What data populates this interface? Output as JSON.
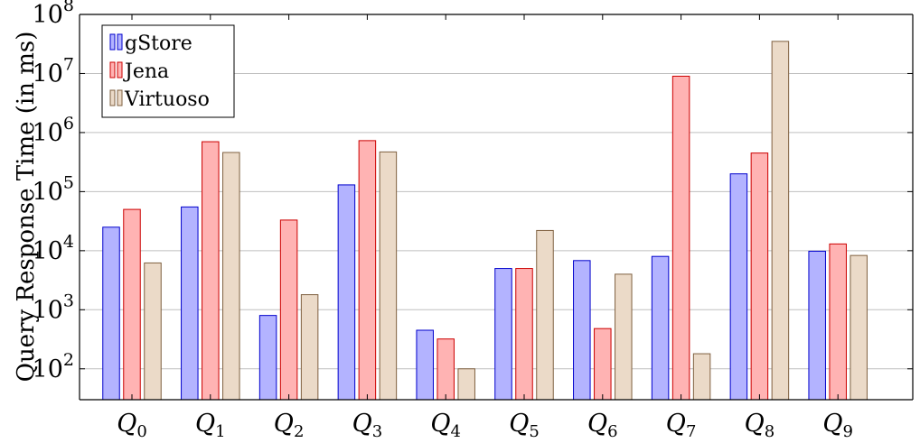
{
  "chart_data": {
    "type": "bar",
    "title": "",
    "xlabel": "",
    "ylabel": "Query Response Time (in ms)",
    "yscale": "log",
    "ylim": [
      30,
      100000000
    ],
    "yticks": [
      {
        "value": 100,
        "base": "10",
        "exp": "2"
      },
      {
        "value": 1000,
        "base": "10",
        "exp": "3"
      },
      {
        "value": 10000,
        "base": "10",
        "exp": "4"
      },
      {
        "value": 100000,
        "base": "10",
        "exp": "5"
      },
      {
        "value": 1000000,
        "base": "10",
        "exp": "6"
      },
      {
        "value": 10000000,
        "base": "10",
        "exp": "7"
      },
      {
        "value": 100000000,
        "base": "10",
        "exp": "8"
      }
    ],
    "grid": "horizontal",
    "legend_position": "top-left",
    "categories": [
      {
        "base": "Q",
        "sub": "0"
      },
      {
        "base": "Q",
        "sub": "1"
      },
      {
        "base": "Q",
        "sub": "2"
      },
      {
        "base": "Q",
        "sub": "3"
      },
      {
        "base": "Q",
        "sub": "4"
      },
      {
        "base": "Q",
        "sub": "5"
      },
      {
        "base": "Q",
        "sub": "6"
      },
      {
        "base": "Q",
        "sub": "7"
      },
      {
        "base": "Q",
        "sub": "8"
      },
      {
        "base": "Q",
        "sub": "9"
      }
    ],
    "series": [
      {
        "name": "gStore",
        "fill": "#b3b3ff",
        "stroke": "#0000cc",
        "values": [
          25000,
          55000,
          800,
          130000,
          450,
          5000,
          6800,
          8000,
          200000,
          9800
        ]
      },
      {
        "name": "Jena",
        "fill": "#ffb3b3",
        "stroke": "#cc0000",
        "values": [
          50000,
          700000,
          33000,
          730000,
          320,
          5000,
          480,
          9000000,
          450000,
          13000
        ]
      },
      {
        "name": "Virtuoso",
        "fill": "#ebdac8",
        "stroke": "#7f6040",
        "values": [
          6200,
          460000,
          1800,
          470000,
          100,
          22000,
          4000,
          180,
          35000000,
          8300
        ]
      }
    ]
  }
}
